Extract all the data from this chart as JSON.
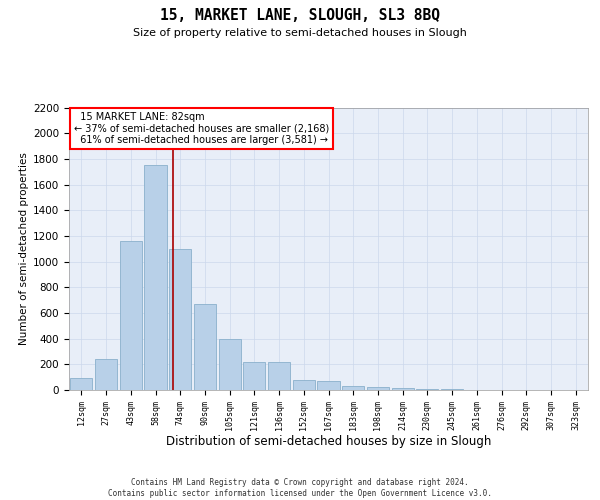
{
  "title": "15, MARKET LANE, SLOUGH, SL3 8BQ",
  "subtitle": "Size of property relative to semi-detached houses in Slough",
  "xlabel": "Distribution of semi-detached houses by size in Slough",
  "ylabel": "Number of semi-detached properties",
  "categories": [
    "12sqm",
    "27sqm",
    "43sqm",
    "58sqm",
    "74sqm",
    "90sqm",
    "105sqm",
    "121sqm",
    "136sqm",
    "152sqm",
    "167sqm",
    "183sqm",
    "198sqm",
    "214sqm",
    "230sqm",
    "245sqm",
    "261sqm",
    "276sqm",
    "292sqm",
    "307sqm",
    "323sqm"
  ],
  "values": [
    90,
    240,
    1160,
    1750,
    1100,
    670,
    400,
    220,
    220,
    80,
    70,
    35,
    20,
    15,
    10,
    5,
    3,
    2,
    2,
    1,
    0
  ],
  "bar_color": "#b8d0e8",
  "bar_edge_color": "#8ab0cc",
  "property_label": "15 MARKET LANE: 82sqm",
  "smaller_pct": "37%",
  "smaller_count": "2,168",
  "larger_pct": "61%",
  "larger_count": "3,581",
  "red_line_x": 3.72,
  "annotation_line_color": "#aa0000",
  "grid_color": "#ccd8ec",
  "background_color": "#e8eef8",
  "ylim": [
    0,
    2200
  ],
  "yticks": [
    0,
    200,
    400,
    600,
    800,
    1000,
    1200,
    1400,
    1600,
    1800,
    2000,
    2200
  ],
  "footer_line1": "Contains HM Land Registry data © Crown copyright and database right 2024.",
  "footer_line2": "Contains public sector information licensed under the Open Government Licence v3.0."
}
